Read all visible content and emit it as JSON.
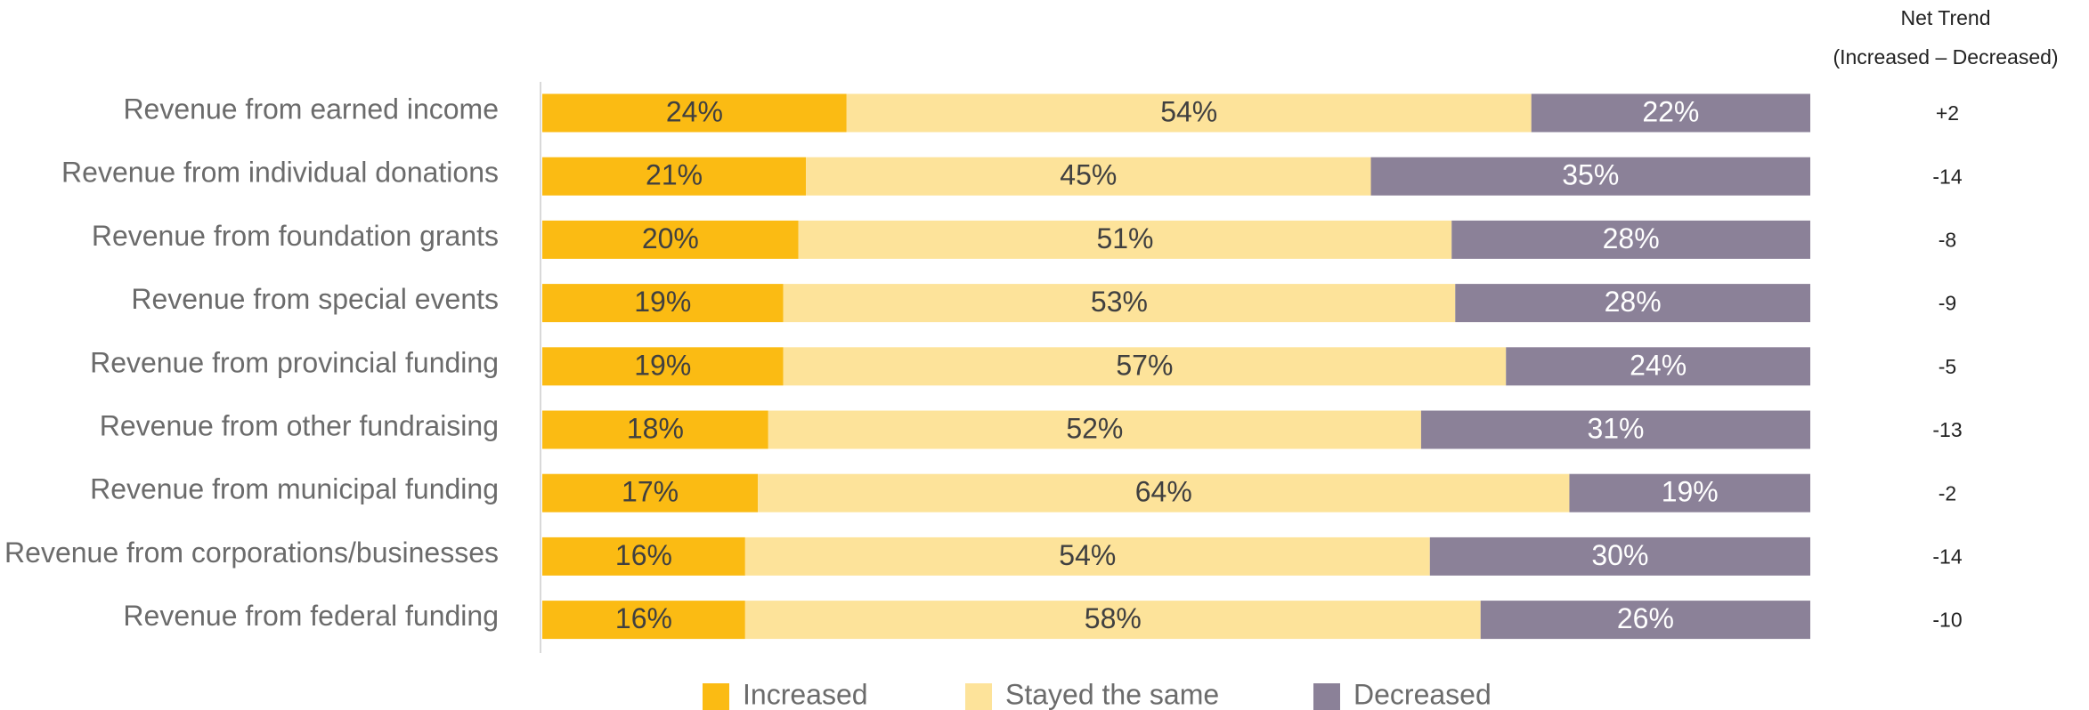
{
  "chart_data": {
    "type": "bar",
    "orientation": "horizontal",
    "stacked": true,
    "percent_stacked": true,
    "categories": [
      "Revenue from earned income",
      "Revenue from individual donations",
      "Revenue from foundation grants",
      "Revenue from special events",
      "Revenue from provincial funding",
      "Revenue from other fundraising",
      "Revenue from municipal funding",
      "Revenue from corporations/businesses",
      "Revenue from federal funding"
    ],
    "series": [
      {
        "name": "Increased",
        "color": "#fbbb13",
        "label_color": "#404040",
        "values": [
          24,
          21,
          20,
          19,
          19,
          18,
          17,
          16,
          16
        ]
      },
      {
        "name": "Stayed the same",
        "color": "#fde39a",
        "label_color": "#404040",
        "values": [
          54,
          45,
          51,
          53,
          57,
          52,
          64,
          54,
          58
        ]
      },
      {
        "name": "Decreased",
        "color": "#8b8198",
        "label_color": "#ffffff",
        "values": [
          22,
          35,
          28,
          28,
          24,
          31,
          19,
          30,
          26
        ]
      }
    ],
    "value_suffix": "%",
    "net_trend": {
      "title_line1": "Net Trend",
      "title_line2": "(Increased – Decreased)",
      "values": [
        "+2",
        "-14",
        "-8",
        "-9",
        "-5",
        "-13",
        "-2",
        "-14",
        "-10"
      ]
    },
    "legend": {
      "position": "bottom"
    },
    "grid": false,
    "title": "",
    "xlabel": "",
    "ylabel": ""
  }
}
